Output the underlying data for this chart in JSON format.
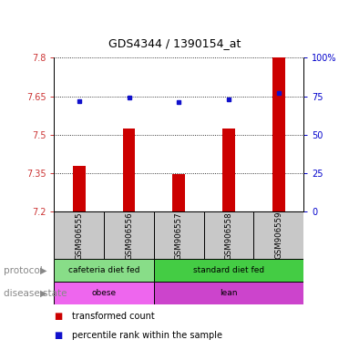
{
  "title": "GDS4344 / 1390154_at",
  "samples": [
    "GSM906555",
    "GSM906556",
    "GSM906557",
    "GSM906558",
    "GSM906559"
  ],
  "bar_values": [
    7.38,
    7.525,
    7.345,
    7.525,
    7.8
  ],
  "percentile_values": [
    72,
    74,
    71,
    73,
    77
  ],
  "ymin": 7.2,
  "ymax": 7.8,
  "yticks_left": [
    7.2,
    7.35,
    7.5,
    7.65,
    7.8
  ],
  "ytick_labels_left": [
    "7.2",
    "7.35",
    "7.5",
    "7.65",
    "7.8"
  ],
  "yticks_right": [
    0,
    25,
    50,
    75,
    100
  ],
  "ytick_labels_right": [
    "0",
    "25",
    "50",
    "75",
    "100%"
  ],
  "bar_color": "#CC0000",
  "dot_color": "#1111CC",
  "sample_box_color": "#C8C8C8",
  "protocol_color_1": "#88DD88",
  "protocol_color_2": "#44CC44",
  "disease_color_1": "#EE66EE",
  "disease_color_2": "#CC44CC",
  "protocol_label": "protocol",
  "disease_label": "disease state",
  "legend_bar_label": "transformed count",
  "legend_dot_label": "percentile rank within the sample"
}
